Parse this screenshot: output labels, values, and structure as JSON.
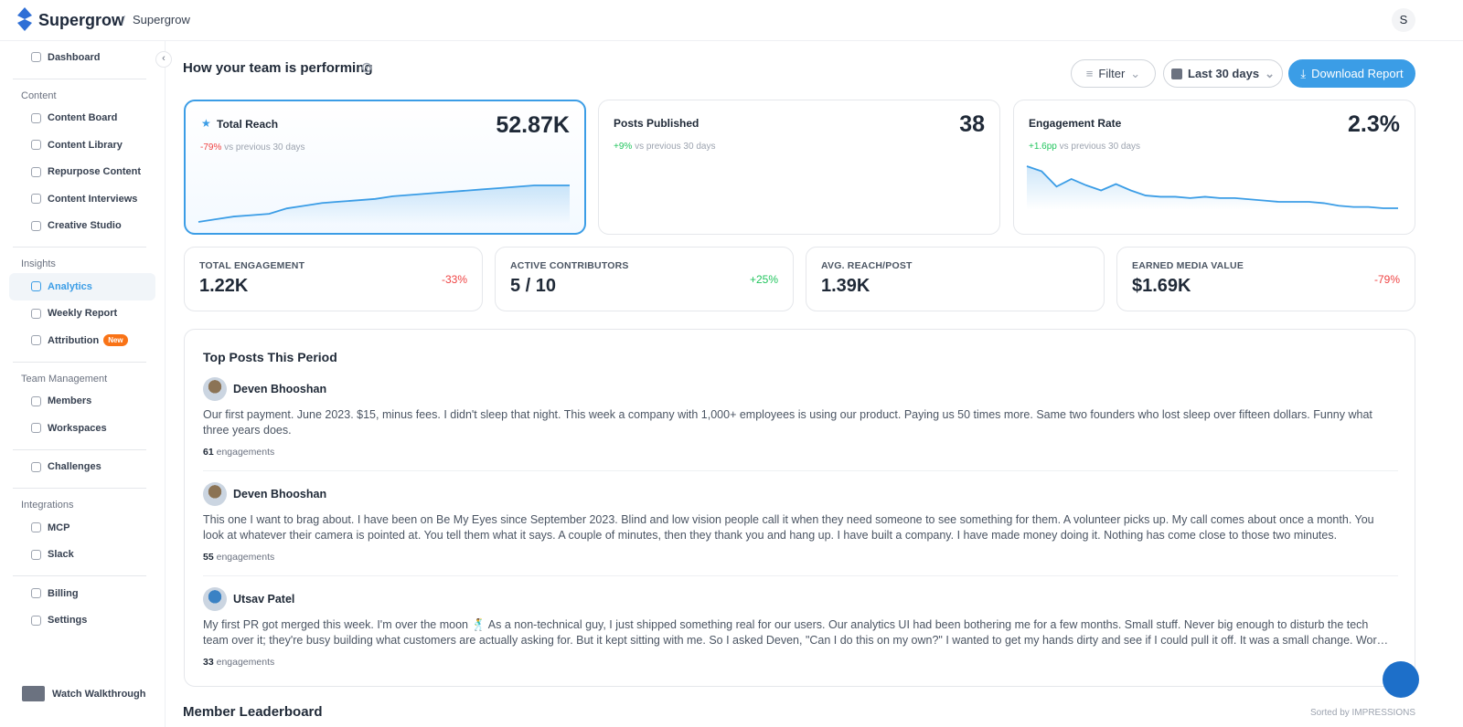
{
  "header": {
    "brand": "Supergrow",
    "separator": "/",
    "workspace": "Supergrow",
    "avatar": "S"
  },
  "sidebar": {
    "top": [
      {
        "label": "Dashboard"
      }
    ],
    "sections": [
      {
        "title": "Content",
        "items": [
          {
            "label": "Content Board"
          },
          {
            "label": "Content Library"
          },
          {
            "label": "Repurpose Content"
          },
          {
            "label": "Content Interviews"
          },
          {
            "label": "Creative Studio"
          }
        ]
      },
      {
        "title": "Insights",
        "items": [
          {
            "label": "Analytics",
            "active": true
          },
          {
            "label": "Weekly Report"
          },
          {
            "label": "Attribution",
            "badge": "New"
          }
        ]
      },
      {
        "title": "Team Management",
        "items": [
          {
            "label": "Members"
          },
          {
            "label": "Workspaces"
          }
        ]
      },
      {
        "items": [
          {
            "label": "Challenges"
          }
        ]
      },
      {
        "title": "Integrations",
        "items": [
          {
            "label": "MCP"
          },
          {
            "label": "Slack"
          }
        ]
      },
      {
        "items": [
          {
            "label": "Billing"
          },
          {
            "label": "Settings"
          }
        ]
      }
    ],
    "footer": "Watch Walkthrough"
  },
  "main": {
    "title": "How your team is performing",
    "buttons": {
      "filter": "Filter",
      "range": "Last 30 days",
      "download": "Download Report"
    }
  },
  "kpis": [
    {
      "label": "Total Reach",
      "value": "52.87K",
      "change": "-79%",
      "direction": "down",
      "note": "vs previous 30 days",
      "selected": true,
      "sparkline": [
        2,
        4,
        6,
        7,
        8,
        12,
        14,
        16,
        17,
        18,
        19,
        21,
        22,
        23,
        24,
        25,
        26,
        27,
        28,
        29,
        29,
        29
      ]
    },
    {
      "label": "Posts Published",
      "value": "38",
      "change": "+9%",
      "direction": "up",
      "note": "vs previous 30 days"
    },
    {
      "label": "Engagement Rate",
      "value": "2.3%",
      "change": "+1.6pp",
      "direction": "up",
      "note": "vs previous 30 days",
      "sparkline": [
        48,
        44,
        32,
        38,
        33,
        29,
        34,
        29,
        25,
        24,
        24,
        23,
        24,
        23,
        23,
        22,
        21,
        20,
        20,
        20,
        19,
        17,
        16,
        16,
        15,
        15
      ]
    }
  ],
  "stats": [
    {
      "label": "TOTAL ENGAGEMENT",
      "value": "1.22K",
      "change": "-33%",
      "direction": "down"
    },
    {
      "label": "ACTIVE CONTRIBUTORS",
      "value": "5 / 10",
      "change": "+25%",
      "direction": "up"
    },
    {
      "label": "AVG. REACH/POST",
      "value": "1.39K"
    },
    {
      "label": "EARNED MEDIA VALUE",
      "value": "$1.69K",
      "change": "-79%",
      "direction": "down"
    }
  ],
  "top_posts": {
    "title": "Top Posts This Period",
    "posts": [
      {
        "author": "Deven Bhooshan",
        "text": "Our first payment. June 2023. $15, minus fees. I didn't sleep that night. This week a company with 1,000+ employees is using our product. Paying us 50 times more. Same two founders who lost sleep over fifteen dollars. Funny what three years does.",
        "count": 61,
        "unit": "engagements"
      },
      {
        "author": "Deven Bhooshan",
        "text": "This one I want to brag about. I have been on Be My Eyes since September 2023. Blind and low vision people call it when they need someone to see something for them. A volunteer picks up. My call comes about once a month. You look at whatever their camera is pointed at. You tell them what it says. A couple of minutes, then they thank you and hang up. I have built a company. I have made money doing it. Nothing has come close to those two minutes.",
        "count": 55,
        "unit": "engagements"
      },
      {
        "author": "Utsav Patel",
        "text": "My first PR got merged this week. I'm over the moon 🕺 As a non-technical guy, I just shipped something real for our users. Our analytics UI had been bothering me for a few months. Small stuff. Never big enough to disturb the tech team over it; they're busy building what customers are actually asking for. But it kept sitting with me. So I asked Deven, \"Can I do this on my own?\" I wanted to get my hands dirty and see if I could pull it off. It was a small change. Worst case, I'd learn...",
        "count": 33,
        "unit": "engagements"
      }
    ]
  },
  "leaderboard": {
    "title": "Member Leaderboard",
    "sort": "Sorted by IMPRESSIONS"
  }
}
